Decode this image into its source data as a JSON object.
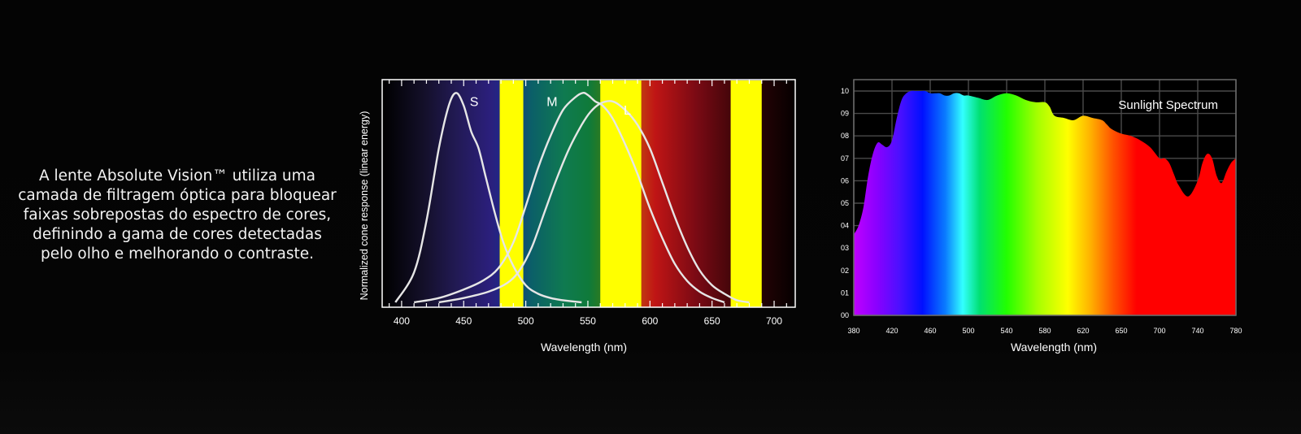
{
  "intro": {
    "lines": [
      "A lente Absolute Vision™ utiliza uma",
      "camada de filtragem óptica para bloquear",
      "faixas sobrepostas do espectro de cores,",
      "definindo a gama de cores detectadas",
      "pelo olho e melhorando o contraste."
    ]
  },
  "chart_data": [
    {
      "type": "line",
      "title": "",
      "xlabel": "Wavelength (nm)",
      "ylabel": "Normalized cone response (linear energy)",
      "xlim": [
        385,
        717
      ],
      "ylim": [
        0,
        1.0
      ],
      "x_ticks": [
        400,
        450,
        500,
        550,
        600,
        650,
        700
      ],
      "series": [
        {
          "name": "S",
          "x": [
            395,
            410,
            420,
            430,
            438,
            444,
            450,
            456,
            462,
            468,
            475,
            482,
            490,
            500,
            510,
            520,
            530,
            545
          ],
          "y": [
            0.0,
            0.14,
            0.38,
            0.72,
            0.92,
            0.98,
            0.92,
            0.8,
            0.72,
            0.58,
            0.42,
            0.28,
            0.17,
            0.08,
            0.04,
            0.02,
            0.01,
            0.0
          ]
        },
        {
          "name": "M",
          "x": [
            410,
            430,
            450,
            465,
            478,
            490,
            500,
            510,
            520,
            530,
            540,
            546,
            550,
            556,
            562,
            570,
            580,
            590,
            600,
            610,
            620,
            630,
            640,
            650,
            660
          ],
          "y": [
            0.0,
            0.02,
            0.06,
            0.1,
            0.16,
            0.28,
            0.45,
            0.63,
            0.78,
            0.9,
            0.96,
            0.98,
            0.97,
            0.94,
            0.92,
            0.86,
            0.74,
            0.6,
            0.44,
            0.3,
            0.18,
            0.1,
            0.05,
            0.02,
            0.0
          ]
        },
        {
          "name": "L",
          "x": [
            430,
            450,
            470,
            485,
            495,
            505,
            515,
            525,
            535,
            545,
            552,
            560,
            570,
            580,
            590,
            600,
            610,
            620,
            630,
            640,
            650,
            660,
            670,
            680
          ],
          "y": [
            0.0,
            0.02,
            0.05,
            0.09,
            0.15,
            0.26,
            0.42,
            0.58,
            0.72,
            0.83,
            0.89,
            0.93,
            0.94,
            0.9,
            0.83,
            0.72,
            0.56,
            0.4,
            0.26,
            0.15,
            0.08,
            0.04,
            0.01,
            0.0
          ]
        }
      ],
      "filter_bands": [
        [
          479,
          498
        ],
        [
          560,
          593
        ],
        [
          665,
          690
        ]
      ],
      "filter_color": "#ffff00",
      "curve_color": "#e6e6e6",
      "grid": false
    },
    {
      "type": "area",
      "title": "Sunlight Spectrum",
      "xlabel": "Wavelength (nm)",
      "ylabel": "",
      "xlim": [
        380,
        780
      ],
      "ylim": [
        0,
        1.0
      ],
      "x_ticks": [
        "380",
        "420",
        "460",
        "500",
        "540",
        "580",
        "620",
        "650",
        "700",
        "740",
        "780"
      ],
      "y_ticks": [
        "00",
        "01",
        "02",
        "03",
        "04",
        "05",
        "06",
        "07",
        "08",
        "09",
        "10"
      ],
      "series": [
        {
          "name": "",
          "x": [
            380,
            385,
            390,
            395,
            400,
            405,
            410,
            415,
            420,
            425,
            430,
            435,
            440,
            445,
            450,
            455,
            460,
            465,
            470,
            475,
            480,
            485,
            490,
            495,
            500,
            510,
            520,
            530,
            540,
            550,
            560,
            570,
            580,
            585,
            590,
            600,
            610,
            620,
            630,
            640,
            645,
            650,
            660,
            670,
            680,
            690,
            700,
            705,
            710,
            715,
            720,
            730,
            740,
            745,
            750,
            755,
            760,
            765,
            770,
            775,
            780
          ],
          "y": [
            0.36,
            0.4,
            0.48,
            0.62,
            0.72,
            0.77,
            0.76,
            0.75,
            0.78,
            0.88,
            0.96,
            0.99,
            1.0,
            1.0,
            1.0,
            1.0,
            0.99,
            0.99,
            0.99,
            0.98,
            0.98,
            0.99,
            0.99,
            0.98,
            0.98,
            0.97,
            0.96,
            0.98,
            0.99,
            0.98,
            0.96,
            0.95,
            0.95,
            0.93,
            0.89,
            0.88,
            0.87,
            0.89,
            0.88,
            0.87,
            0.85,
            0.83,
            0.81,
            0.8,
            0.78,
            0.75,
            0.7,
            0.7,
            0.68,
            0.63,
            0.58,
            0.53,
            0.6,
            0.68,
            0.72,
            0.7,
            0.62,
            0.59,
            0.64,
            0.68,
            0.7
          ]
        }
      ],
      "grid": true,
      "legend": "none"
    }
  ]
}
